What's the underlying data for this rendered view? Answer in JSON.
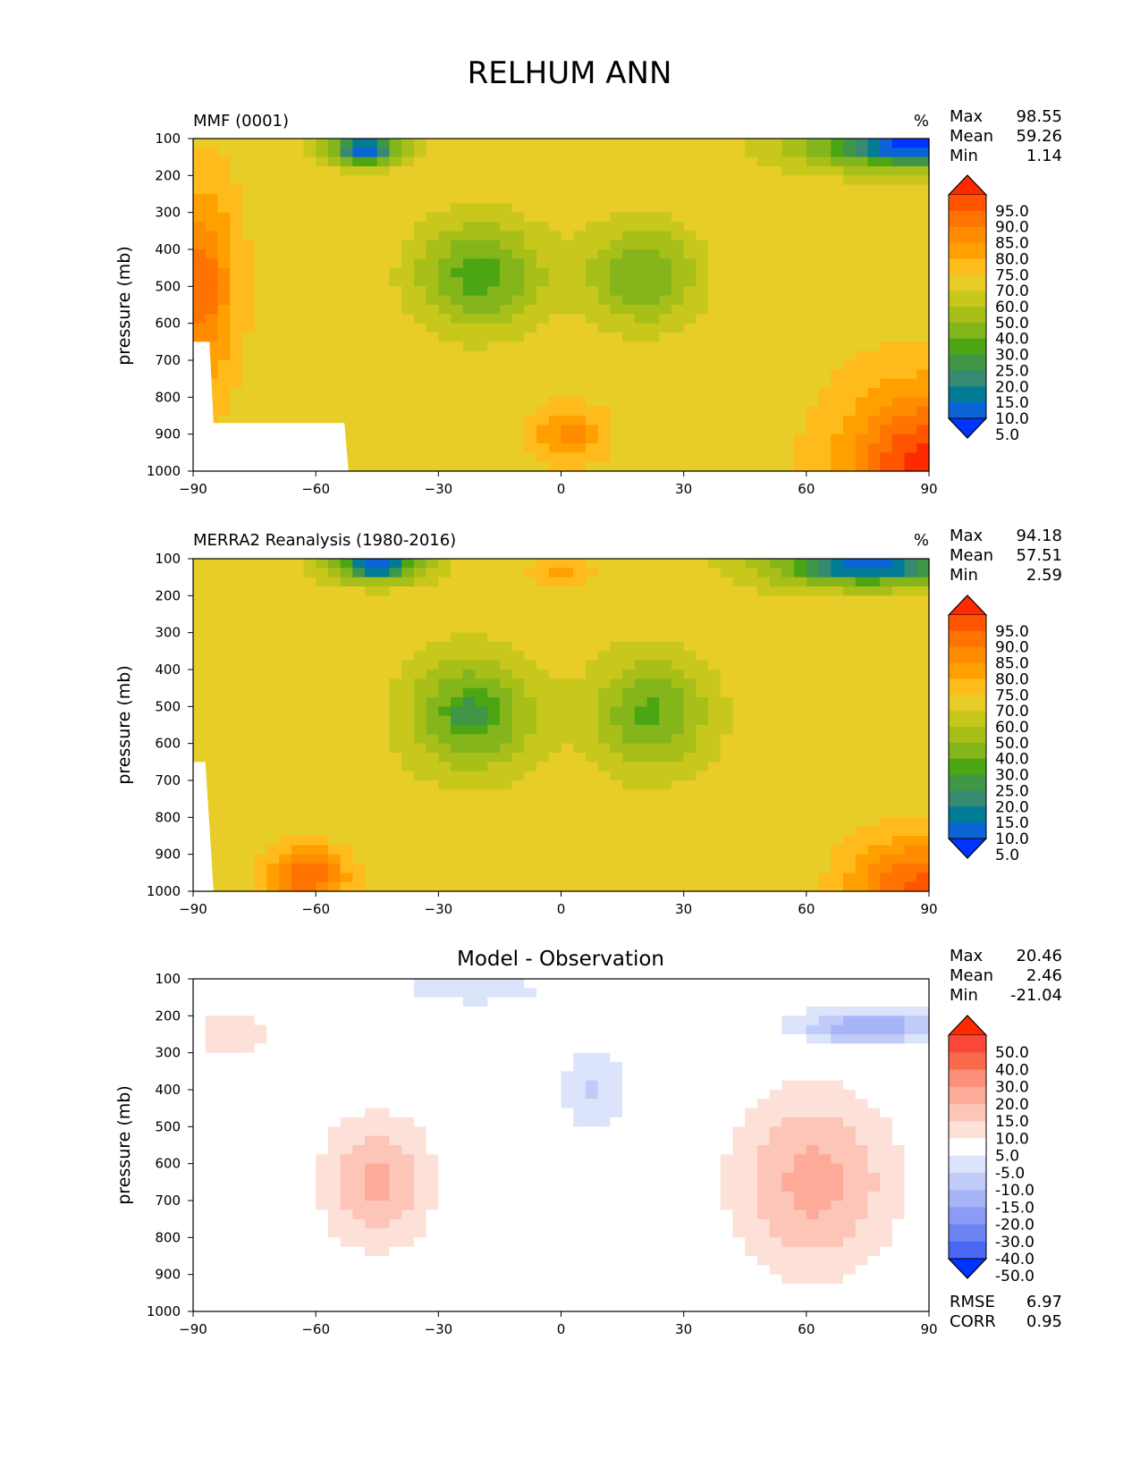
{
  "title": "RELHUM ANN",
  "chart_data": [
    {
      "type": "heatmap",
      "panel": "model",
      "title": "MMF (0001)",
      "units": "%",
      "ylabel": "pressure (mb)",
      "xlabel": "",
      "xlim": [
        -90,
        90
      ],
      "ylim": [
        1000,
        100
      ],
      "xticks": [
        "−90",
        "−60",
        "−30",
        "0",
        "30",
        "60",
        "90"
      ],
      "yticks": [
        "100",
        "200",
        "300",
        "400",
        "500",
        "600",
        "700",
        "800",
        "900",
        "1000"
      ],
      "stats": [
        {
          "label": "Max",
          "value": "98.55"
        },
        {
          "label": "Mean",
          "value": "59.26"
        },
        {
          "label": "Min",
          "value": "1.14"
        }
      ],
      "colorbar": {
        "labels": [
          "95.0",
          "90.0",
          "85.0",
          "80.0",
          "75.0",
          "70.0",
          "60.0",
          "50.0",
          "40.0",
          "30.0",
          "25.0",
          "20.0",
          "15.0",
          "10.0",
          "5.0"
        ],
        "colors": [
          "#ff2a00",
          "#ff5500",
          "#ff7300",
          "#ff8c00",
          "#ffa000",
          "#ffbb1c",
          "#e8cc28",
          "#c8c81c",
          "#a8bf1a",
          "#84b51a",
          "#4ca614",
          "#3e9646",
          "#368a72",
          "#027c95",
          "#0a64d6",
          "#0033ff"
        ]
      },
      "field": {
        "base": 68,
        "lows": [
          {
            "lat": -20,
            "p": 470,
            "value": 25,
            "sx": 16,
            "sp": 150
          },
          {
            "lat": 20,
            "p": 470,
            "value": 30,
            "sx": 14,
            "sp": 140
          },
          {
            "lat": -48,
            "p": 130,
            "value": 2,
            "sx": 10,
            "sp": 45
          },
          {
            "lat": 88,
            "p": 120,
            "value": 1,
            "sx": 30,
            "sp": 70
          }
        ],
        "highs": [
          {
            "lat": 90,
            "p": 1000,
            "value": 98,
            "sx": 20,
            "sp": 220
          },
          {
            "lat": -88,
            "p": 500,
            "value": 88,
            "sx": 8,
            "sp": 250
          },
          {
            "lat": 2,
            "p": 900,
            "value": 82,
            "sx": 8,
            "sp": 70
          }
        ]
      }
    },
    {
      "type": "heatmap",
      "panel": "observation",
      "title": "MERRA2 Reanalysis (1980-2016)",
      "units": "%",
      "ylabel": "pressure (mb)",
      "xlabel": "",
      "xlim": [
        -90,
        90
      ],
      "ylim": [
        1000,
        100
      ],
      "xticks": [
        "−90",
        "−60",
        "−30",
        "0",
        "30",
        "60",
        "90"
      ],
      "yticks": [
        "100",
        "200",
        "300",
        "400",
        "500",
        "600",
        "700",
        "800",
        "900",
        "1000"
      ],
      "stats": [
        {
          "label": "Max",
          "value": "94.18"
        },
        {
          "label": "Mean",
          "value": "57.51"
        },
        {
          "label": "Min",
          "value": "2.59"
        }
      ],
      "colorbar": {
        "labels": [
          "95.0",
          "90.0",
          "85.0",
          "80.0",
          "75.0",
          "70.0",
          "60.0",
          "50.0",
          "40.0",
          "30.0",
          "25.0",
          "20.0",
          "15.0",
          "10.0",
          "5.0"
        ],
        "colors": [
          "#ff2a00",
          "#ff5500",
          "#ff7300",
          "#ff8c00",
          "#ffa000",
          "#ffbb1c",
          "#e8cc28",
          "#c8c81c",
          "#a8bf1a",
          "#84b51a",
          "#4ca614",
          "#3e9646",
          "#368a72",
          "#027c95",
          "#0a64d6",
          "#0033ff"
        ]
      },
      "field": {
        "base": 66,
        "lows": [
          {
            "lat": -22,
            "p": 520,
            "value": 22,
            "sx": 15,
            "sp": 150
          },
          {
            "lat": 22,
            "p": 520,
            "value": 28,
            "sx": 14,
            "sp": 150
          },
          {
            "lat": -45,
            "p": 120,
            "value": 5,
            "sx": 12,
            "sp": 45
          },
          {
            "lat": 75,
            "p": 120,
            "value": 5,
            "sx": 25,
            "sp": 60
          }
        ],
        "highs": [
          {
            "lat": -62,
            "p": 960,
            "value": 90,
            "sx": 10,
            "sp": 80
          },
          {
            "lat": 88,
            "p": 1000,
            "value": 92,
            "sx": 18,
            "sp": 150
          },
          {
            "lat": 0,
            "p": 130,
            "value": 76,
            "sx": 8,
            "sp": 60
          }
        ]
      }
    },
    {
      "type": "heatmap",
      "panel": "difference",
      "title": "Model - Observation",
      "ylabel": "pressure (mb)",
      "xlabel": "",
      "xlim": [
        -90,
        90
      ],
      "ylim": [
        1000,
        100
      ],
      "xticks": [
        "−90",
        "−60",
        "−30",
        "0",
        "30",
        "60",
        "90"
      ],
      "yticks": [
        "100",
        "200",
        "300",
        "400",
        "500",
        "600",
        "700",
        "800",
        "900",
        "1000"
      ],
      "stats": [
        {
          "label": "Max",
          "value": "20.46"
        },
        {
          "label": "Mean",
          "value": "2.46"
        },
        {
          "label": "Min",
          "value": "-21.04"
        }
      ],
      "metrics": [
        {
          "label": "RMSE",
          "value": "6.97"
        },
        {
          "label": "CORR",
          "value": "0.95"
        }
      ],
      "colorbar": {
        "labels": [
          "50.0",
          "40.0",
          "30.0",
          "20.0",
          "15.0",
          "10.0",
          "5.0",
          "-5.0",
          "-10.0",
          "-15.0",
          "-20.0",
          "-30.0",
          "-40.0",
          "-50.0"
        ],
        "colors": [
          "#ff2a00",
          "#f9483a",
          "#fb6a4a",
          "#fc8f79",
          "#fdaa98",
          "#fdc4b8",
          "#fde0d8",
          "#ffffff",
          "#dce4fb",
          "#c0cbf8",
          "#a7b5f7",
          "#8a9cf5",
          "#6b83f3",
          "#4a67f3",
          "#0033ff"
        ]
      },
      "field": {
        "base": 0,
        "lows": [
          {
            "lat": 8,
            "p": 400,
            "value": -11,
            "sx": 8,
            "sp": 120
          },
          {
            "lat": 75,
            "p": 230,
            "value": -21,
            "sx": 18,
            "sp": 50
          },
          {
            "lat": -22,
            "p": 130,
            "value": -10,
            "sx": 18,
            "sp": 40
          }
        ],
        "highs": [
          {
            "lat": -45,
            "p": 650,
            "value": 16,
            "sx": 14,
            "sp": 180
          },
          {
            "lat": 62,
            "p": 650,
            "value": 17,
            "sx": 20,
            "sp": 250
          },
          {
            "lat": -80,
            "p": 250,
            "value": 10,
            "sx": 10,
            "sp": 60
          }
        ]
      }
    }
  ]
}
